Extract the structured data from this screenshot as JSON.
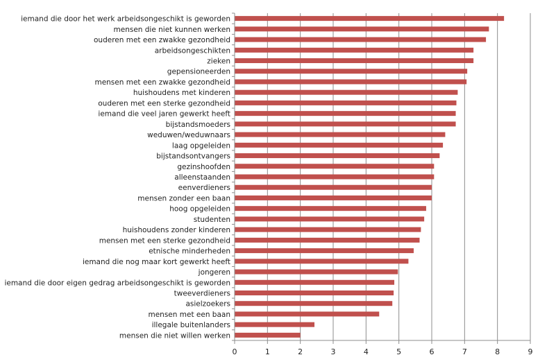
{
  "chart_data": {
    "type": "bar",
    "orientation": "horizontal",
    "title": "",
    "xlabel": "",
    "ylabel": "",
    "xlim": [
      0,
      9
    ],
    "x_ticks": [
      "0",
      "1",
      "2",
      "3",
      "4",
      "5",
      "6",
      "7",
      "8",
      "9"
    ],
    "grid": true,
    "legend": "none",
    "bar_color": "#c0504d",
    "categories": [
      "iemand die door het werk arbeidsongeschikt is geworden",
      "mensen die niet kunnen werken",
      "ouderen met een zwakke gezondheid",
      "arbeidsongeschikten",
      "zieken",
      "gepensioneerden",
      "mensen met een zwakke gezondheid",
      "huishoudens met kinderen",
      "ouderen met een sterke gezondheid",
      "iemand die veel jaren gewerkt heeft",
      "bijstandsmoeders",
      "weduwen/weduwnaars",
      "laag opgeleiden",
      "bijstandsontvangers",
      "gezinshoofden",
      "alleenstaanden",
      "eenverdieners",
      "mensen zonder een baan",
      "hoog opgeleiden",
      "studenten",
      "huishoudens zonder kinderen",
      "mensen met een sterke gezondheid",
      "etnische minderheden",
      "iemand die nog maar kort gewerkt heeft",
      "jongeren",
      "iemand die door eigen gedrag arbeidsongeschikt is geworden",
      "tweeverdieners",
      "asielzoekers",
      "mensen met een baan",
      "illegale buitenlanders",
      "mensen die niet willen werken"
    ],
    "values": [
      8.2,
      7.74,
      7.65,
      7.27,
      7.27,
      7.08,
      7.06,
      6.79,
      6.75,
      6.73,
      6.73,
      6.41,
      6.34,
      6.24,
      6.07,
      6.07,
      6.0,
      6.0,
      5.83,
      5.77,
      5.67,
      5.63,
      5.45,
      5.29,
      4.97,
      4.86,
      4.84,
      4.8,
      4.4,
      2.43,
      2.0
    ]
  }
}
